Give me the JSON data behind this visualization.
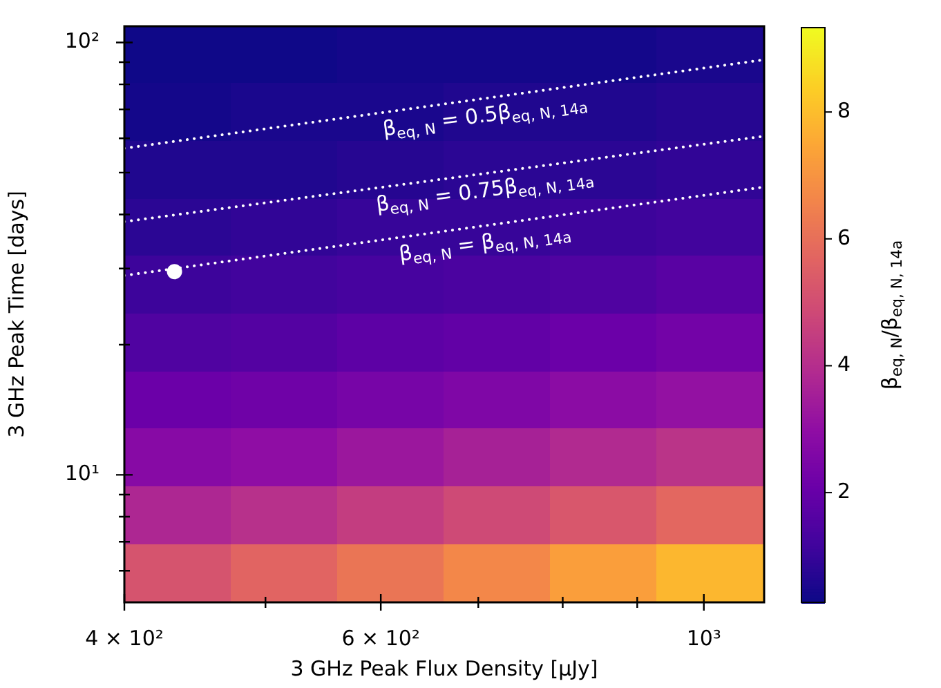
{
  "chart_data": {
    "type": "heatmap",
    "xlabel": "3 GHz Peak Flux Density [μJy]",
    "ylabel": "3 GHz Peak Time [days]",
    "clabel": "β$_{eq, N}$/β$_{eq, N, 14a}$",
    "log": "xy",
    "xlim": [
      400,
      1100
    ],
    "ylim": [
      5.07,
      109
    ],
    "xticks": [
      {
        "value": 400,
        "label": "4 × 10²"
      },
      {
        "value": 500,
        "label": null
      },
      {
        "value": 600,
        "label": "6 × 10²"
      },
      {
        "value": 700,
        "label": null
      },
      {
        "value": 800,
        "label": null
      },
      {
        "value": 900,
        "label": null
      },
      {
        "value": 1000,
        "label": "10³"
      }
    ],
    "yticks": [
      {
        "value": 6,
        "label": null
      },
      {
        "value": 7,
        "label": null
      },
      {
        "value": 8,
        "label": null
      },
      {
        "value": 9,
        "label": null
      },
      {
        "value": 10,
        "label": "10¹"
      },
      {
        "value": 20,
        "label": null
      },
      {
        "value": 30,
        "label": null
      },
      {
        "value": 40,
        "label": null
      },
      {
        "value": 50,
        "label": null
      },
      {
        "value": 60,
        "label": null
      },
      {
        "value": 70,
        "label": null
      },
      {
        "value": 80,
        "label": null
      },
      {
        "value": 90,
        "label": null
      },
      {
        "value": 100,
        "label": "10²"
      }
    ],
    "cells": [
      [
        0.3,
        0.3,
        0.4,
        0.4,
        0.4,
        0.5
      ],
      [
        0.4,
        0.5,
        0.5,
        0.6,
        0.6,
        0.7
      ],
      [
        0.6,
        0.6,
        0.7,
        0.8,
        0.8,
        0.9
      ],
      [
        0.8,
        0.9,
        1.0,
        1.0,
        1.1,
        1.2
      ],
      [
        1.1,
        1.2,
        1.3,
        1.4,
        1.5,
        1.7
      ],
      [
        1.5,
        1.6,
        1.8,
        1.9,
        2.1,
        2.3
      ],
      [
        2.1,
        2.2,
        2.4,
        2.6,
        2.9,
        3.1
      ],
      [
        2.8,
        3.0,
        3.3,
        3.6,
        3.9,
        4.2
      ],
      [
        3.8,
        4.1,
        4.5,
        4.9,
        5.3,
        5.8
      ],
      [
        5.2,
        5.7,
        6.2,
        6.7,
        7.3,
        7.9
      ]
    ],
    "clim": [
      0.27,
      9.33
    ],
    "cticks": [
      2,
      4,
      6,
      8
    ],
    "series": [
      {
        "type": "line",
        "name": "β$_{eq, N}$ = 0.5β$_{eq, N, 14a}$",
        "color": "#ffffff",
        "line_style": "dotted",
        "x": [
          400,
          1100
        ],
        "values": [
          56.9,
          91.2
        ]
      },
      {
        "type": "line",
        "name": "β$_{eq, N}$ = 0.75β$_{eq, N, 14a}$",
        "color": "#ffffff",
        "line_style": "dotted",
        "x": [
          400,
          1100
        ],
        "values": [
          38.5,
          60.7
        ]
      },
      {
        "type": "line",
        "name": "β$_{eq, N}$ = β$_{eq, N, 14a}$",
        "color": "#ffffff",
        "line_style": "dotted",
        "x": [
          400,
          1100
        ],
        "values": [
          28.9,
          46.3
        ]
      },
      {
        "type": "scatter",
        "color": "#ffffff",
        "marker": "circle",
        "x": [
          433
        ],
        "values": [
          29.5
        ]
      }
    ]
  }
}
